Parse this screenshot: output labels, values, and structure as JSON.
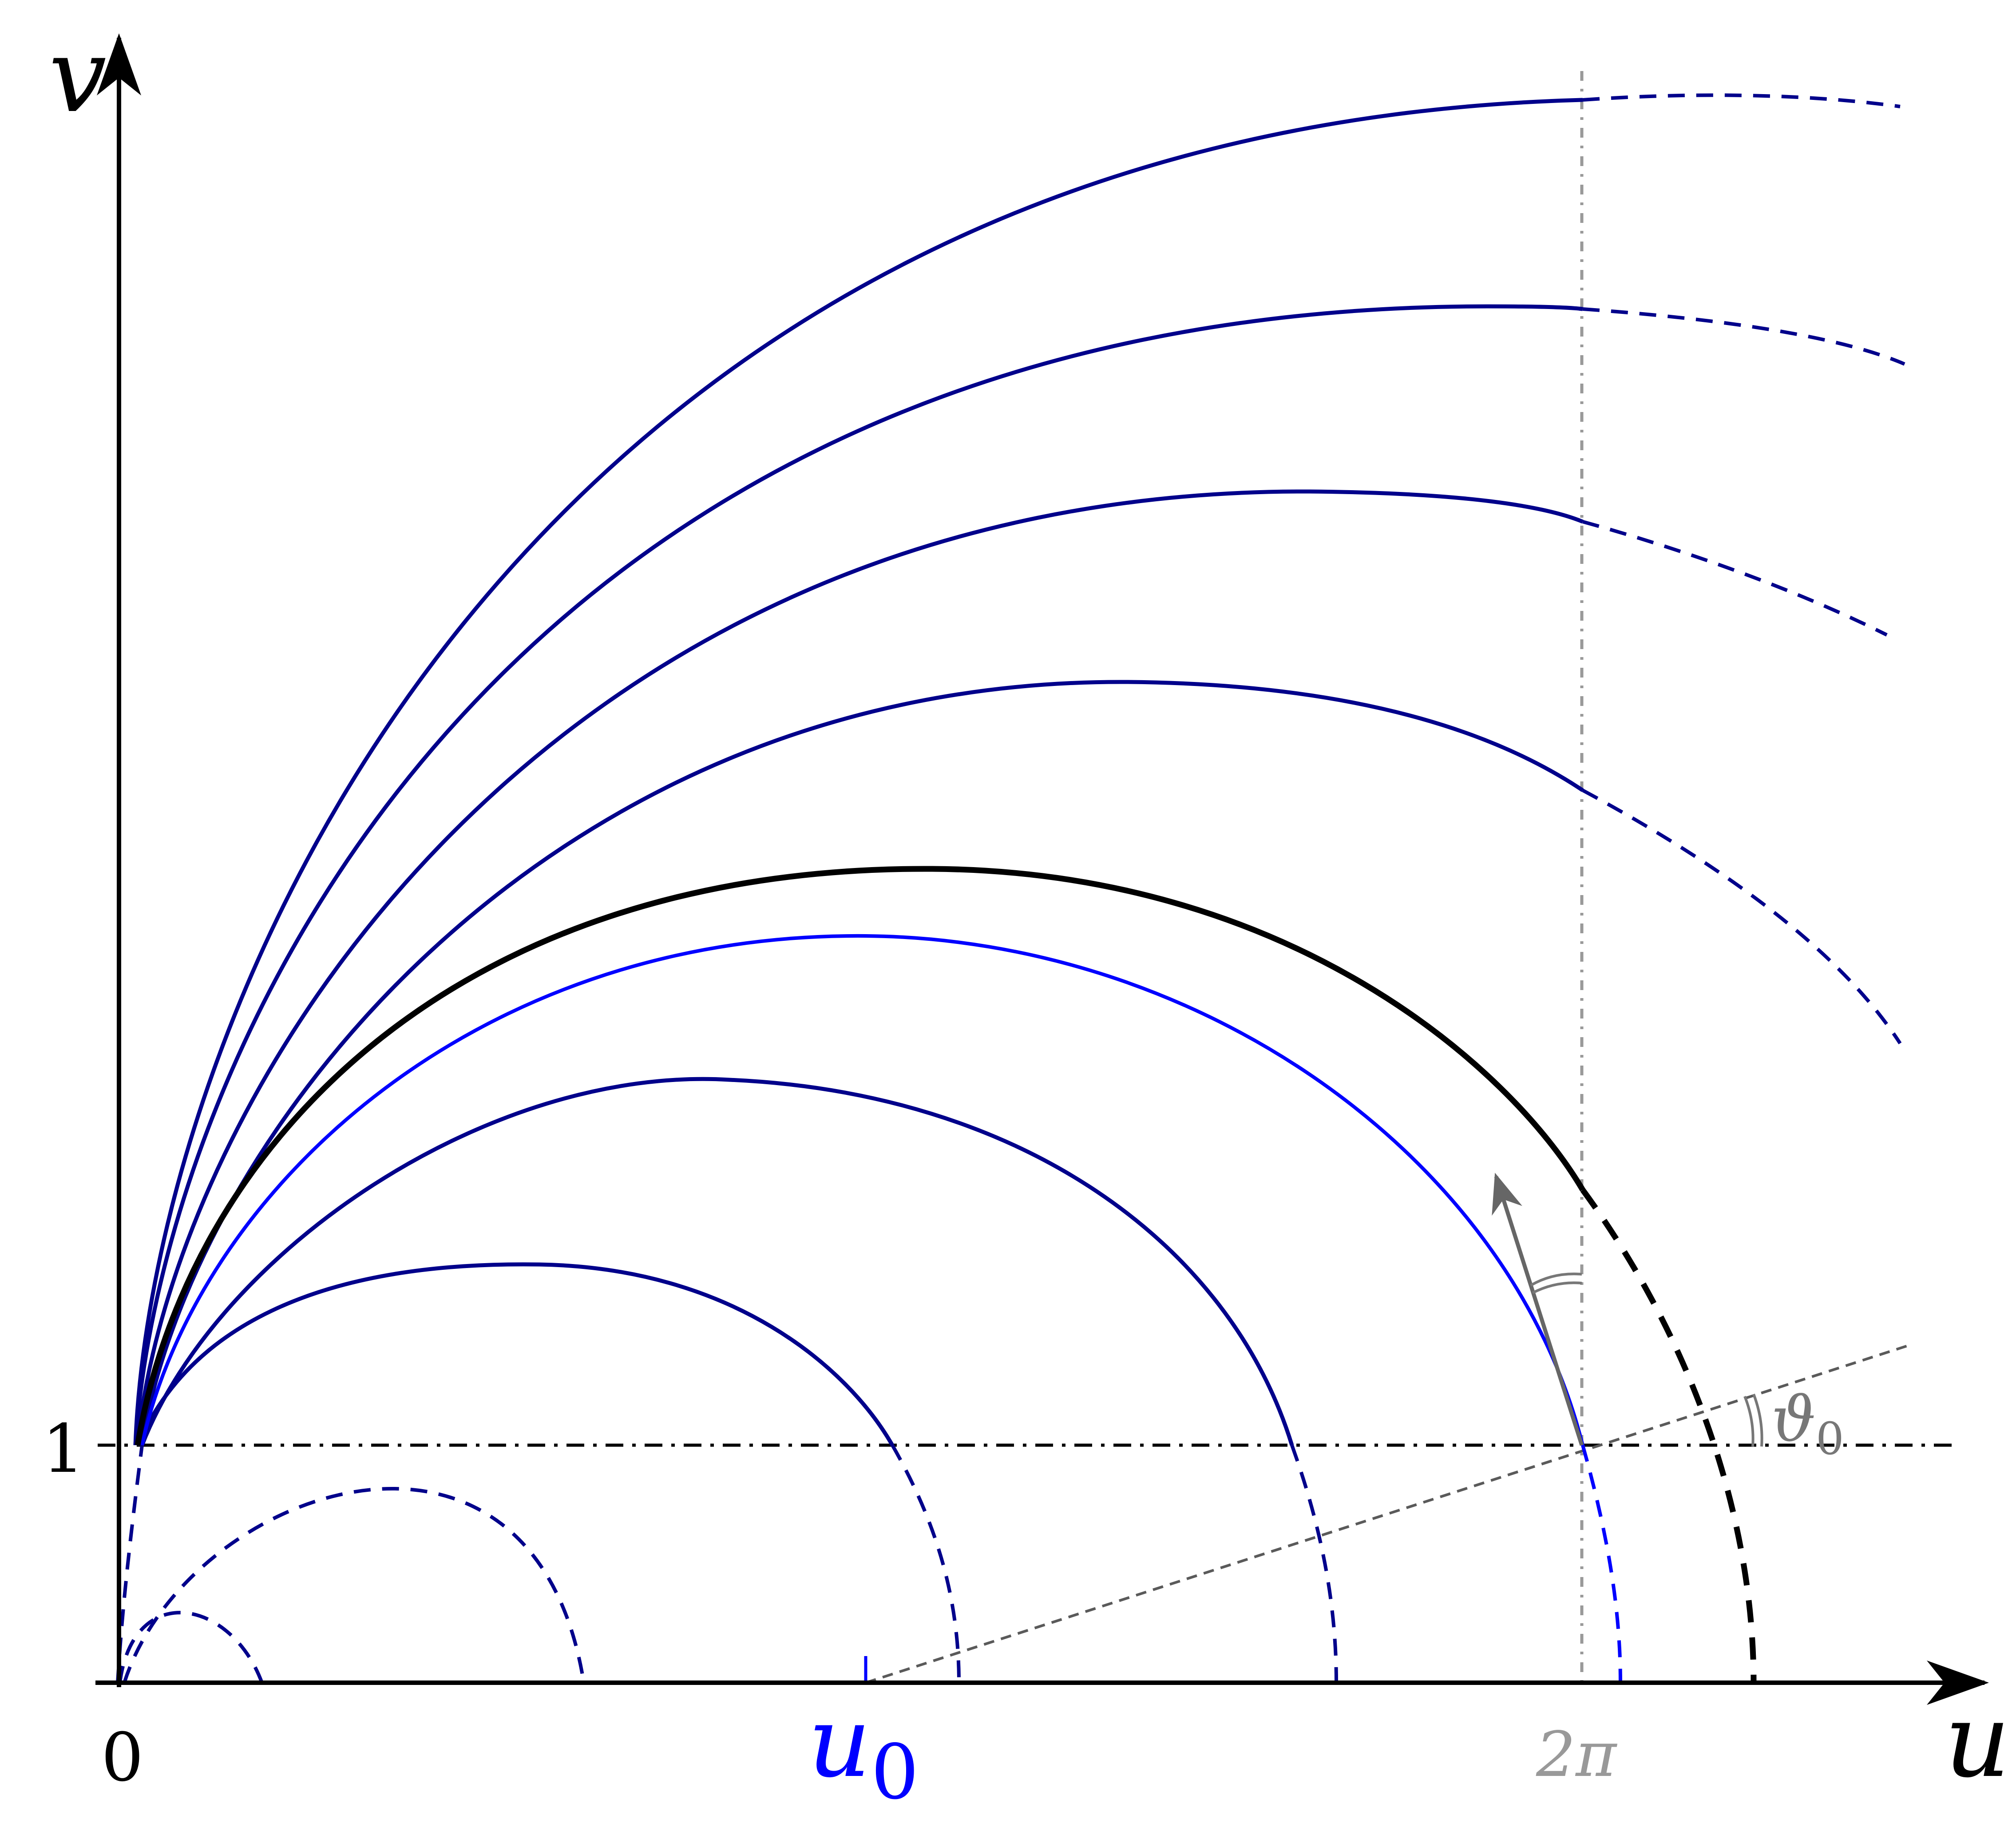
{
  "labels": {
    "v_axis": "v",
    "u_axis": "u",
    "origin": "0",
    "one": "1",
    "u0": "u",
    "u0_sub": "0",
    "two_pi": "2π",
    "theta0": "ϑ",
    "theta0_sub": "0"
  },
  "colors": {
    "axis": "#000000",
    "curve": "#00008b",
    "highlight_curve": "#0000ff",
    "critical_curve": "#000000",
    "guide": "#808080",
    "guide_dark": "#5a5a5a"
  },
  "icons": {
    "axis_arrowheads": "arrow-head"
  }
}
